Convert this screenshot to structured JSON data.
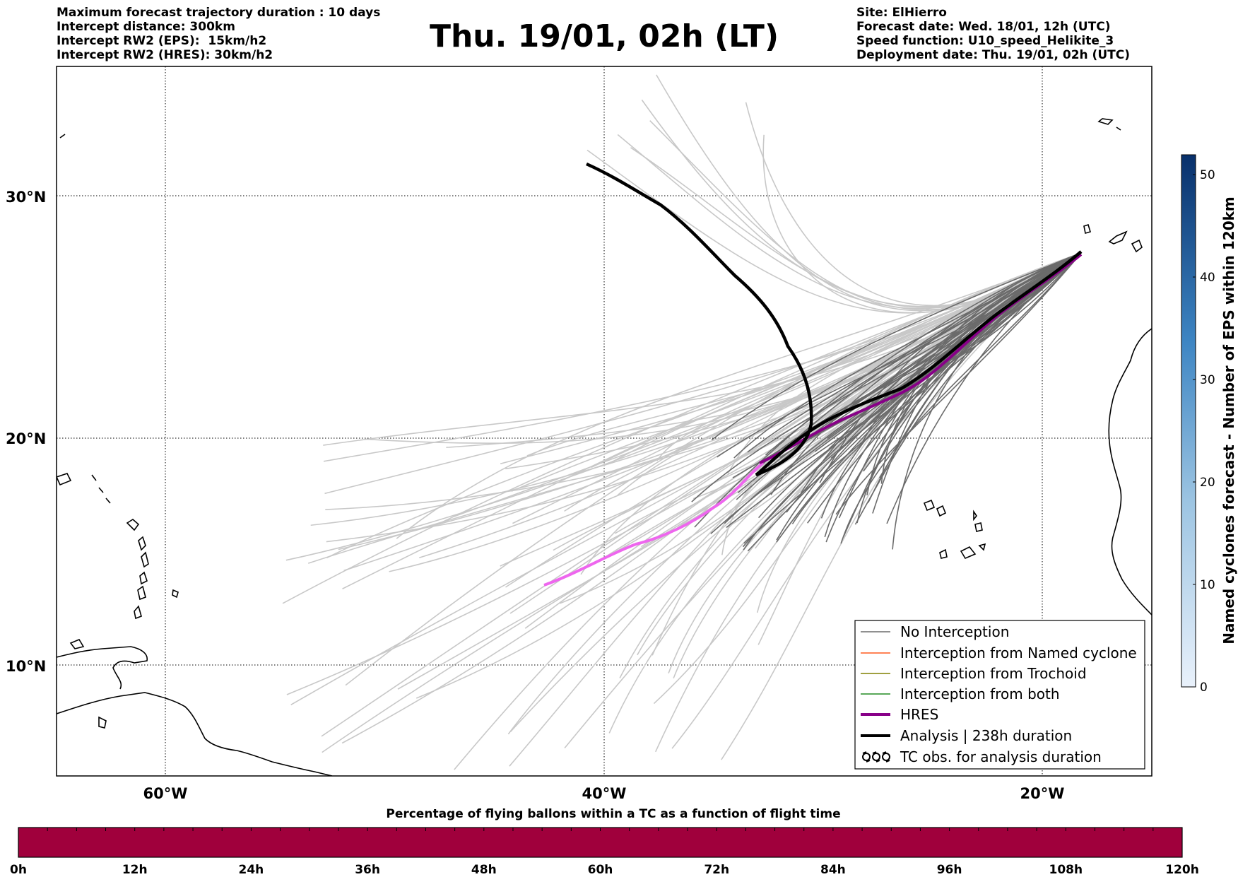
{
  "header": {
    "left_lines": [
      "Maximum forecast trajectory duration : 10 days",
      "Intercept distance: 300km",
      "Intercept RW2 (EPS):  15km/h2",
      "Intercept RW2 (HRES): 30km/h2"
    ],
    "right_lines": [
      "Site: ElHierro",
      "Forecast date: Wed. 18/01, 12h (UTC)",
      "Speed function: U10_speed_Helikite_3",
      "Deployment date: Thu. 19/01, 02h (UTC)"
    ],
    "title": "Thu. 19/01, 02h (LT)"
  },
  "map": {
    "lat_labels": [
      "30°N",
      "20°N",
      "10°N"
    ],
    "lon_labels": [
      "60°W",
      "40°W",
      "20°W"
    ],
    "colors": {
      "no_interception": "#6b6b6b",
      "eps_other": "#c8c8c8",
      "named_cyclone": "#ff5a1f",
      "trochoid": "#808000",
      "both": "#228b22",
      "hres": "#880088",
      "hres_track_visible": "#ee66ee",
      "analysis": "#000000",
      "coast": "#000000"
    }
  },
  "legend": {
    "items": [
      {
        "label": "No Interception",
        "color": "#6b6b6b"
      },
      {
        "label": "Interception from Named cyclone",
        "color": "#ff5a1f"
      },
      {
        "label": "Interception from Trochoid",
        "color": "#808000"
      },
      {
        "label": "Interception from both",
        "color": "#228b22"
      },
      {
        "label": "HRES",
        "color": "#880088"
      },
      {
        "label": "Analysis | 238h duration",
        "color": "#000000"
      },
      {
        "label": "TC obs. for analysis duration",
        "icon": "tc-symbol-icon"
      }
    ]
  },
  "colorbar_right": {
    "label": "Named cyclones forecast - Number of EPS within 120km",
    "ticks": [
      "0",
      "10",
      "20",
      "30",
      "40",
      "50"
    ]
  },
  "colorbar_bottom": {
    "label": "Percentage of flying ballons within a TC as a function of flight time",
    "ticks": [
      "0h",
      "12h",
      "24h",
      "36h",
      "48h",
      "60h",
      "72h",
      "84h",
      "96h",
      "108h",
      "120h"
    ],
    "fill_color": "#a0003c"
  }
}
